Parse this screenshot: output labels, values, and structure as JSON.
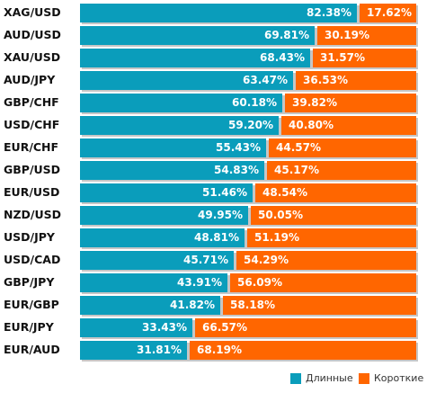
{
  "chart_data": {
    "type": "bar",
    "orientation": "horizontal",
    "stacked": true,
    "categories": [
      "XAG/USD",
      "AUD/USD",
      "XAU/USD",
      "AUD/JPY",
      "GBP/CHF",
      "USD/CHF",
      "EUR/CHF",
      "GBP/USD",
      "EUR/USD",
      "NZD/USD",
      "USD/JPY",
      "USD/CAD",
      "GBP/JPY",
      "EUR/GBP",
      "EUR/JPY",
      "EUR/AUD"
    ],
    "series": [
      {
        "name": "Длинные",
        "color": "#0a9dbb",
        "values": [
          82.38,
          69.81,
          68.43,
          63.47,
          60.18,
          59.2,
          55.43,
          54.83,
          51.46,
          49.95,
          48.81,
          45.71,
          43.91,
          41.82,
          33.43,
          31.81
        ],
        "labels": [
          "82.38%",
          "69.81%",
          "68.43%",
          "63.47%",
          "60.18%",
          "59.20%",
          "55.43%",
          "54.83%",
          "51.46%",
          "49.95%",
          "48.81%",
          "45.71%",
          "43.91%",
          "41.82%",
          "33.43%",
          "31.81%"
        ]
      },
      {
        "name": "Короткие",
        "color": "#ff6600",
        "values": [
          17.62,
          30.19,
          31.57,
          36.53,
          39.82,
          40.8,
          44.57,
          45.17,
          48.54,
          50.05,
          51.19,
          54.29,
          56.09,
          58.18,
          66.57,
          68.19
        ],
        "labels": [
          "17.62%",
          "30.19%",
          "31.57%",
          "36.53%",
          "39.82%",
          "40.80%",
          "44.57%",
          "45.17%",
          "48.54%",
          "50.05%",
          "51.19%",
          "54.29%",
          "56.09%",
          "58.18%",
          "66.57%",
          "68.19%"
        ]
      }
    ],
    "xlim": [
      0,
      100
    ],
    "legend_position": "bottom-right"
  }
}
